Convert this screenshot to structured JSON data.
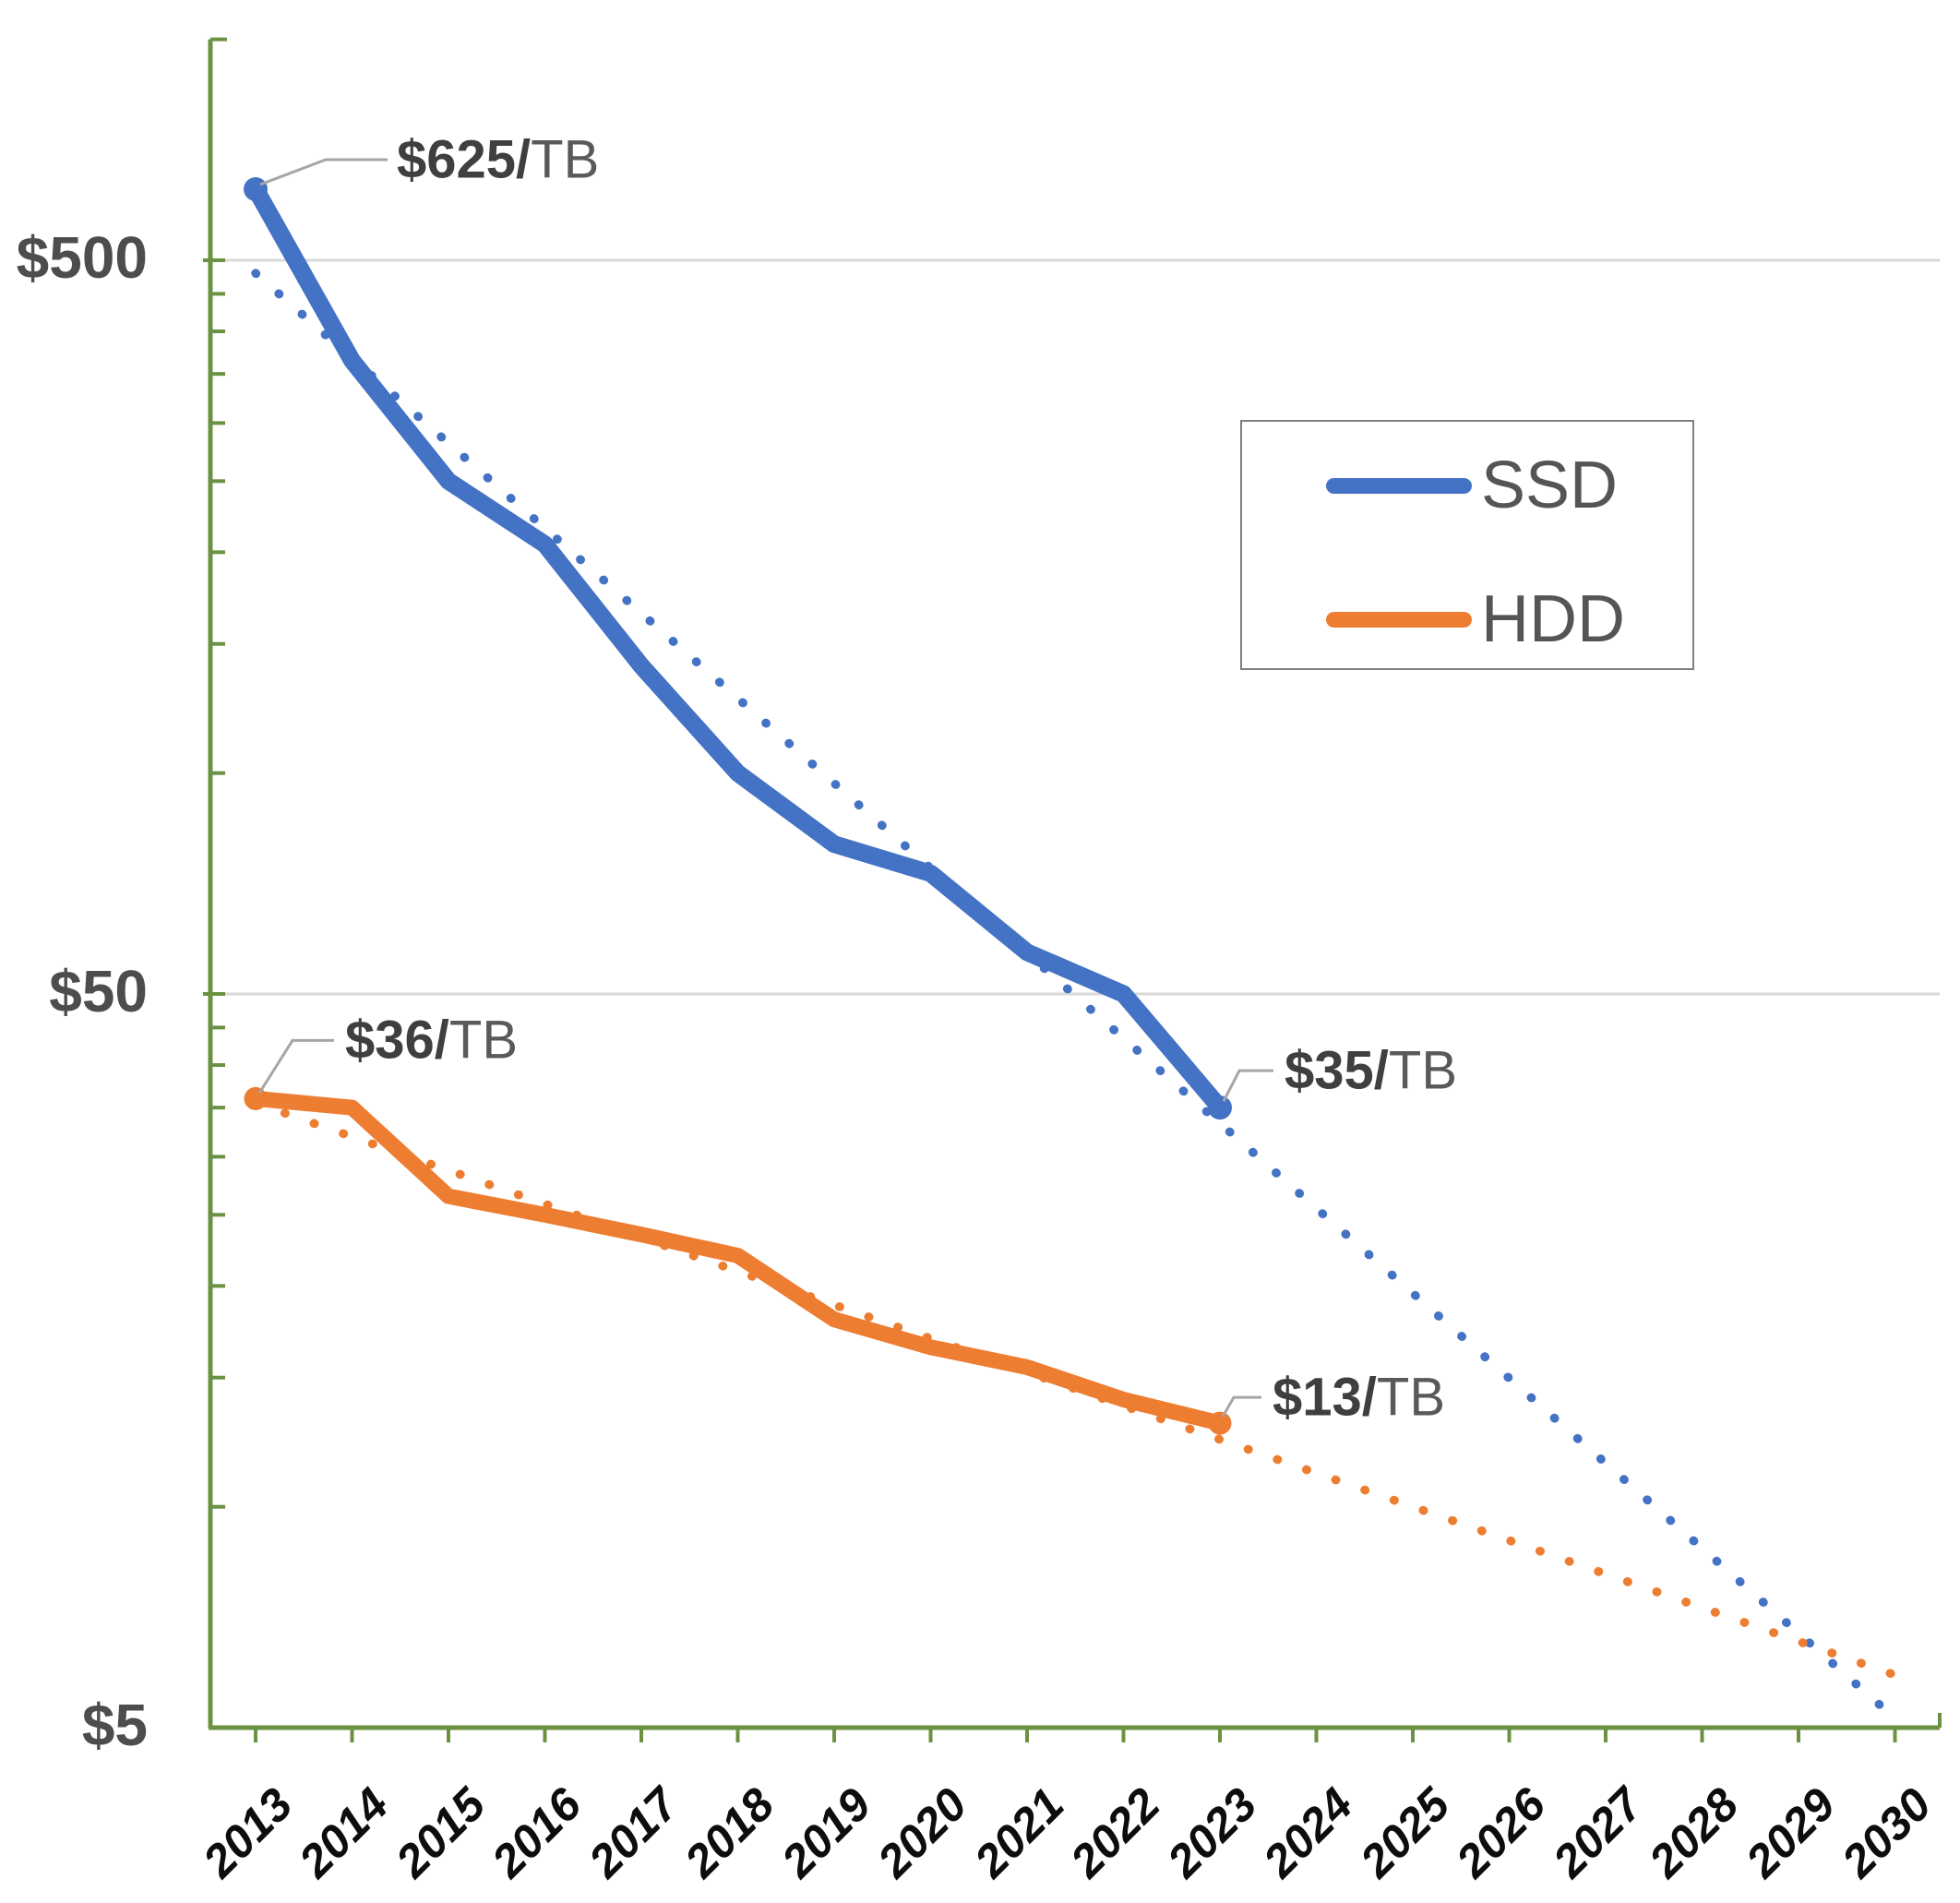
{
  "chart_data": {
    "type": "line",
    "title": "",
    "y_axis": {
      "scale": "log",
      "unit": "$ per TB",
      "range": [
        5,
        1000
      ],
      "labels": [
        {
          "text": "$500",
          "value": 500
        },
        {
          "text": "$50",
          "value": 50
        },
        {
          "text": "$5",
          "value": 5
        }
      ],
      "gridline_values": [
        500,
        50
      ],
      "minor_tick_values": [
        450,
        400,
        350,
        300,
        250,
        200,
        150,
        100,
        45,
        40,
        35,
        30,
        25,
        20,
        15,
        10
      ],
      "major_tick_values": [
        500,
        50
      ],
      "top_cap_value": 1000
    },
    "x_axis": {
      "years": [
        "2013",
        "2014",
        "2015",
        "2016",
        "2017",
        "2018",
        "2019",
        "2020",
        "2021",
        "2022",
        "2023",
        "2024",
        "2025",
        "2026",
        "2027",
        "2028",
        "2029",
        "2030"
      ]
    },
    "series": [
      {
        "name": "SSD trend",
        "style": "dotted",
        "color": "#4472C4",
        "width": 9.5,
        "points": [
          [
            2013,
            480
          ],
          [
            2030,
            5.15
          ]
        ]
      },
      {
        "name": "HDD trend",
        "style": "dotted",
        "color": "#ED7D31",
        "width": 9.5,
        "points": [
          [
            2013,
            35.5
          ],
          [
            2030,
            5.9
          ]
        ]
      },
      {
        "name": "SSD",
        "style": "solid",
        "color": "#4472C4",
        "width": 19,
        "end_dot_radius": 13,
        "points": [
          [
            2013,
            625
          ],
          [
            2014,
            365
          ],
          [
            2015,
            250
          ],
          [
            2016,
            205
          ],
          [
            2017,
            140
          ],
          [
            2018,
            100
          ],
          [
            2019,
            80
          ],
          [
            2020,
            73
          ],
          [
            2021,
            57
          ],
          [
            2022,
            50
          ],
          [
            2023,
            35
          ]
        ]
      },
      {
        "name": "HDD",
        "style": "solid",
        "color": "#ED7D31",
        "width": 17,
        "end_dot_radius": 12.5,
        "points": [
          [
            2013,
            36
          ],
          [
            2014,
            35
          ],
          [
            2015,
            26.5
          ],
          [
            2016,
            25
          ],
          [
            2017,
            23.5
          ],
          [
            2018,
            22
          ],
          [
            2019,
            18
          ],
          [
            2020,
            16.5
          ],
          [
            2021,
            15.5
          ],
          [
            2022,
            14
          ],
          [
            2023,
            13
          ]
        ]
      }
    ],
    "annotations": [
      {
        "id": "ssd-start",
        "year": 2013,
        "value": 625,
        "val": "$625/",
        "unit": "TB"
      },
      {
        "id": "hdd-start",
        "year": 2013,
        "value": 36,
        "val": "$36/",
        "unit": "TB"
      },
      {
        "id": "ssd-end",
        "year": 2023,
        "value": 35,
        "val": "$35/",
        "unit": "TB"
      },
      {
        "id": "hdd-end",
        "year": 2023,
        "value": 13,
        "val": "$13/",
        "unit": "TB"
      }
    ],
    "legend": {
      "items": [
        {
          "label": "SSD",
          "color": "#4472C4"
        },
        {
          "label": "HDD",
          "color": "#ED7D31"
        }
      ],
      "position": "top-right"
    },
    "colors": {
      "axis_green": "#6B9142",
      "gridline_gray": "#D9D9D9",
      "leader_gray": "#A6A6A6",
      "label_gray": "#4d4d4d",
      "legend_text": "#555555",
      "ssd_blue": "#4472C4",
      "hdd_orange": "#ED7D31"
    }
  }
}
